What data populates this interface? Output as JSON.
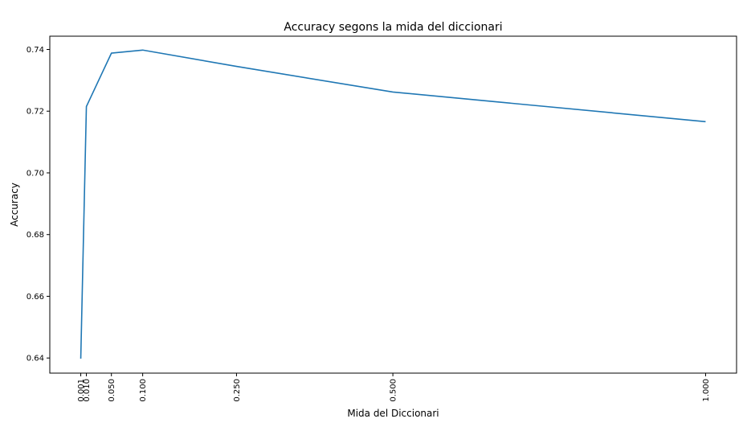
{
  "chart_data": {
    "type": "line",
    "title": "Accuracy segons la mida del diccionari",
    "xlabel": "Mida del Diccionari",
    "ylabel": "Accuracy",
    "x": [
      0.001,
      0.01,
      0.05,
      0.1,
      0.25,
      0.5,
      1.0
    ],
    "x_tick_labels": [
      "0.001",
      "0.010",
      "0.050",
      "0.100",
      "0.250",
      "0.500",
      "1.000"
    ],
    "y_ticks": [
      0.64,
      0.66,
      0.68,
      0.7,
      0.72,
      0.74
    ],
    "y_tick_labels": [
      "0.64",
      "0.66",
      "0.68",
      "0.70",
      "0.72",
      "0.74"
    ],
    "series": [
      {
        "values": [
          0.6398,
          0.7215,
          0.7388,
          0.7398,
          0.7345,
          0.7262,
          0.7166
        ],
        "color": "#1f77b4"
      }
    ],
    "xlim": [
      -0.0485,
      1.0495
    ],
    "ylim": [
      0.6351,
      0.7443
    ],
    "grid": false,
    "legend": "none"
  }
}
